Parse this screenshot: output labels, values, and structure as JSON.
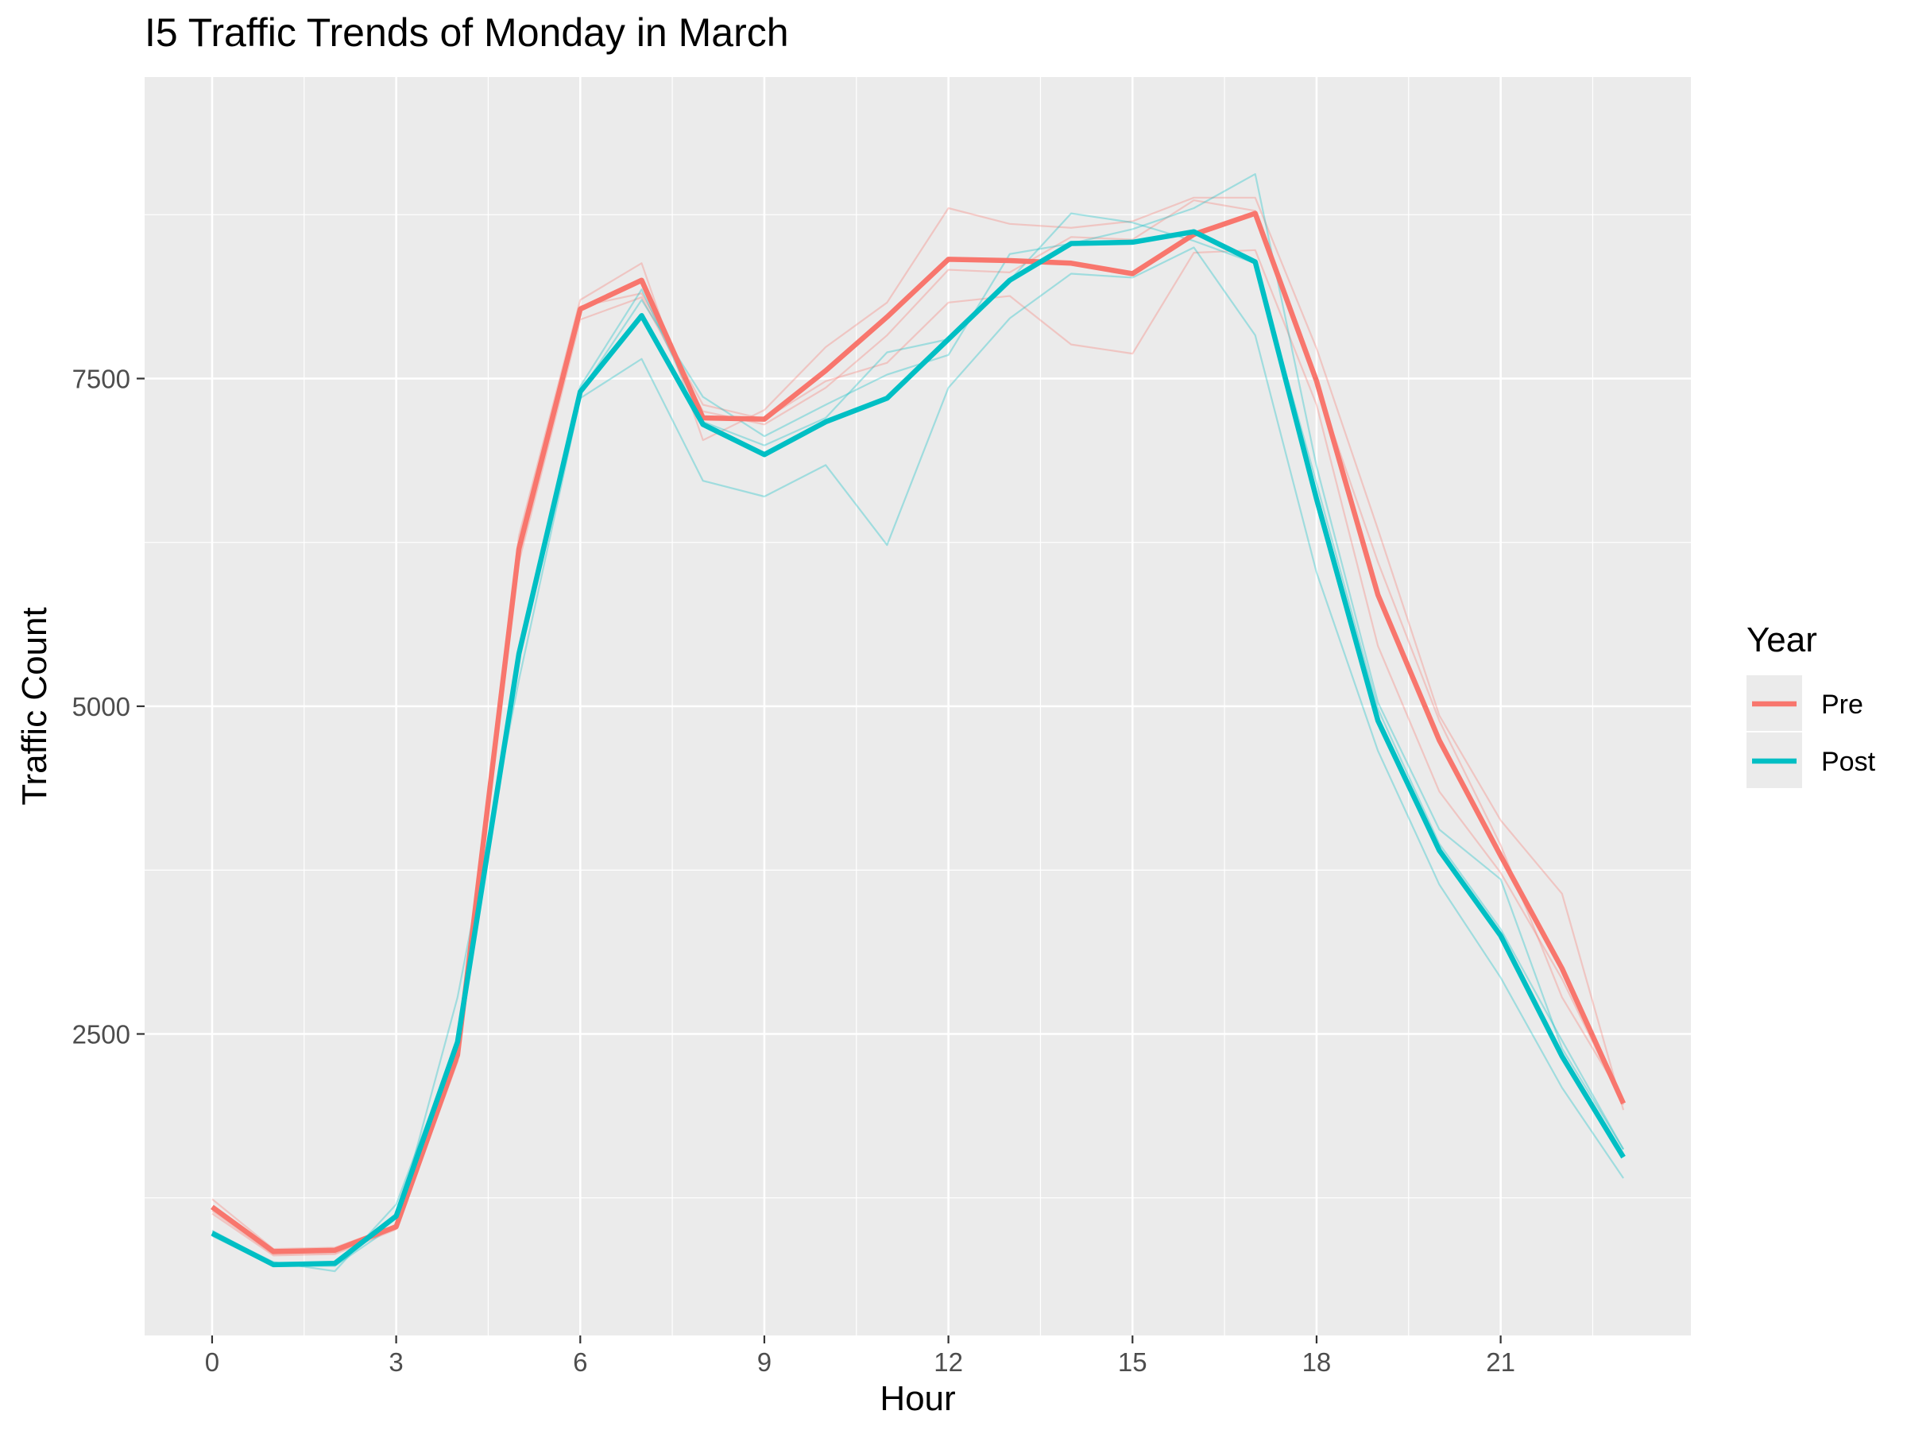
{
  "chart_data": {
    "type": "line",
    "title": "I5 Traffic Trends of Monday in March",
    "xlabel": "Hour",
    "ylabel": "Traffic Count",
    "x_ticks": [
      0,
      3,
      6,
      9,
      12,
      15,
      18,
      21
    ],
    "y_ticks": [
      2500,
      5000,
      7500
    ],
    "xlim": [
      -1.1,
      24.1
    ],
    "ylim": [
      200,
      9800
    ],
    "grid": true,
    "legend": {
      "title": "Year",
      "position": "right",
      "entries": [
        {
          "label": "Pre",
          "color": "#F8766D"
        },
        {
          "label": "Post",
          "color": "#00BFC4"
        }
      ]
    },
    "x": [
      0,
      1,
      2,
      3,
      4,
      5,
      6,
      7,
      8,
      9,
      10,
      11,
      12,
      13,
      14,
      15,
      16,
      17,
      18,
      19,
      20,
      21,
      22,
      23
    ],
    "series": [
      {
        "name": "Pre",
        "color": "#F8766D",
        "values": [
          1180,
          840,
          850,
          1030,
          2340,
          6200,
          8030,
          8250,
          7200,
          7190,
          7560,
          7970,
          8410,
          8400,
          8380,
          8300,
          8600,
          8760,
          7480,
          5850,
          4740,
          3860,
          3000,
          1970
        ]
      },
      {
        "name": "Post",
        "color": "#00BFC4",
        "values": [
          980,
          740,
          750,
          1110,
          2440,
          5400,
          7400,
          7980,
          7150,
          6920,
          7170,
          7350,
          7800,
          8250,
          8530,
          8540,
          8620,
          8390,
          6580,
          4890,
          3900,
          3250,
          2330,
          1560
        ]
      }
    ],
    "background_lines": [
      {
        "group": "Pre",
        "color": "#F8766D",
        "values": [
          1240,
          860,
          870,
          1040,
          2380,
          6300,
          8100,
          8380,
          7030,
          7260,
          7740,
          8080,
          8800,
          8680,
          8650,
          8700,
          8880,
          8880,
          7730,
          6350,
          4930,
          4130,
          3570,
          1920
        ]
      },
      {
        "group": "Pre",
        "color": "#F8766D",
        "values": [
          1130,
          810,
          820,
          1010,
          2290,
          6100,
          7950,
          8120,
          7250,
          7150,
          7430,
          7830,
          8330,
          8310,
          8580,
          8560,
          8860,
          8780,
          7450,
          6100,
          4890,
          3940,
          2780,
          2000
        ]
      },
      {
        "group": "Pre",
        "color": "#F8766D",
        "values": [
          1150,
          820,
          830,
          1020,
          2300,
          6150,
          8050,
          8150,
          7300,
          7190,
          7480,
          7620,
          8080,
          8130,
          7760,
          7690,
          8460,
          8480,
          7300,
          5460,
          4350,
          3730,
          2920,
          1960
        ]
      },
      {
        "group": "Post",
        "color": "#00BFC4",
        "values": [
          960,
          730,
          730,
          1050,
          2780,
          5200,
          7350,
          7650,
          6720,
          6600,
          6840,
          6230,
          7430,
          7960,
          8300,
          8270,
          8500,
          7830,
          6020,
          4660,
          3640,
          2930,
          2090,
          1400
        ]
      },
      {
        "group": "Post",
        "color": "#00BFC4",
        "values": [
          1000,
          750,
          760,
          1130,
          2390,
          5430,
          7440,
          8180,
          7170,
          6990,
          7200,
          7700,
          7800,
          8250,
          8760,
          8690,
          8550,
          8380,
          6700,
          4980,
          3950,
          3300,
          2450,
          1620
        ]
      },
      {
        "group": "Post",
        "color": "#00BFC4",
        "values": [
          990,
          760,
          690,
          1200,
          2440,
          5350,
          7400,
          8100,
          7360,
          7060,
          7300,
          7530,
          7680,
          8450,
          8530,
          8640,
          8800,
          9060,
          6830,
          5030,
          4060,
          3680,
          2390,
          1620
        ]
      }
    ]
  }
}
